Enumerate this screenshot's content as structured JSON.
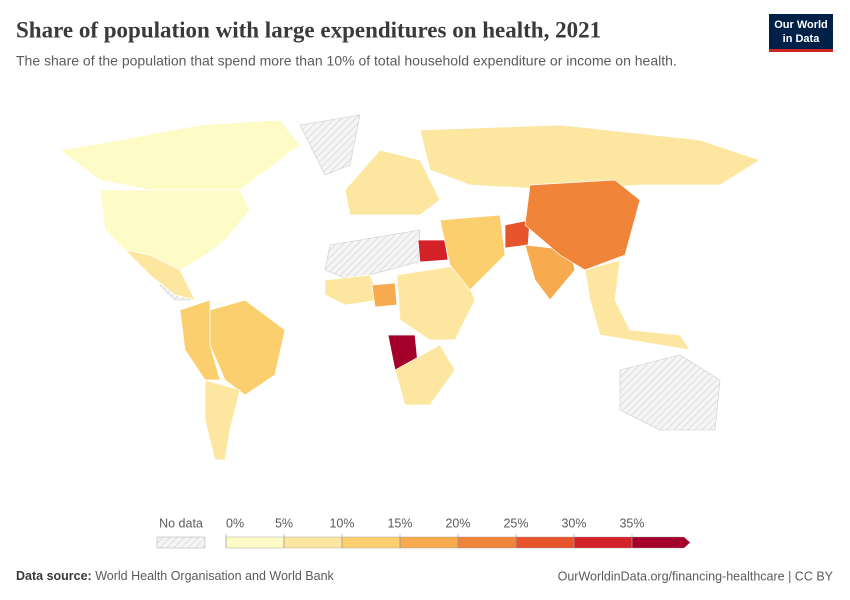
{
  "chart_data": {
    "type": "map",
    "title": "Share of population with large expenditures on health, 2021",
    "subtitle": "The share of the population that spend more than 10% of total household expenditure or income on health.",
    "regions": [
      3,
      4,
      5,
      14,
      10,
      8,
      6,
      7,
      30,
      8,
      18,
      6,
      38,
      5,
      12,
      27,
      17,
      22,
      5
    ],
    "no_data_label": "No data",
    "legend": {
      "ticks": [
        {
          "value": 0,
          "label": "0%"
        },
        {
          "value": 5,
          "label": "5%"
        },
        {
          "value": 10,
          "label": "10%"
        },
        {
          "value": 15,
          "label": "15%"
        },
        {
          "value": 20,
          "label": "20%"
        },
        {
          "value": 25,
          "label": "25%"
        },
        {
          "value": 30,
          "label": "30%"
        },
        {
          "value": 35,
          "label": "35%"
        }
      ],
      "colors": [
        "#fefbc6",
        "#fde7a0",
        "#fbcf6d",
        "#f7ab4e",
        "#f08439",
        "#e7532b",
        "#d32128",
        "#a5002b"
      ]
    }
  },
  "logo": [
    "Our World",
    "in Data"
  ],
  "footer": {
    "source_label": "Data source:",
    "source": "World Health Organisation and World Bank",
    "url": "OurWorldinData.org/financing-healthcare | CC BY"
  }
}
